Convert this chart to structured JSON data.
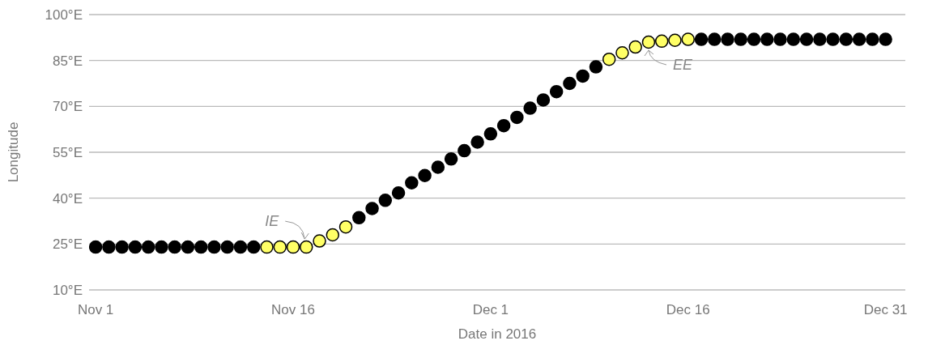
{
  "chart_data": {
    "type": "scatter",
    "xlabel": "Date in 2016",
    "ylabel": "Longitude",
    "xlim": [
      "2016-10-31T12:00",
      "2017-01-01T12:00"
    ],
    "xticks": [
      {
        "value": "2016-11-01",
        "label": "Nov 1"
      },
      {
        "value": "2016-11-16",
        "label": "Nov 16"
      },
      {
        "value": "2016-12-01",
        "label": "Dec 1"
      },
      {
        "value": "2016-12-16",
        "label": "Dec 16"
      },
      {
        "value": "2016-12-31",
        "label": "Dec 31"
      }
    ],
    "ylim": [
      10,
      100
    ],
    "yticks": [
      {
        "value": 10,
        "label": "10°E"
      },
      {
        "value": 25,
        "label": "25°E"
      },
      {
        "value": 40,
        "label": "40°E"
      },
      {
        "value": 55,
        "label": "55°E"
      },
      {
        "value": 70,
        "label": "70°E"
      },
      {
        "value": 85,
        "label": "85°E"
      },
      {
        "value": 100,
        "label": "100°E"
      }
    ],
    "grid": "y",
    "legend": false,
    "marker": "circle",
    "series": [
      {
        "color": "#000000",
        "x": [
          "2016-11-01",
          "2016-11-02",
          "2016-11-03",
          "2016-11-04",
          "2016-11-05",
          "2016-11-06",
          "2016-11-07",
          "2016-11-08",
          "2016-11-09",
          "2016-11-10",
          "2016-11-11",
          "2016-11-12",
          "2016-11-13",
          "2016-11-21",
          "2016-11-22",
          "2016-11-23",
          "2016-11-24",
          "2016-11-25",
          "2016-11-26",
          "2016-11-27",
          "2016-11-28",
          "2016-11-29",
          "2016-11-30",
          "2016-12-01",
          "2016-12-02",
          "2016-12-03",
          "2016-12-04",
          "2016-12-05",
          "2016-12-06",
          "2016-12-07",
          "2016-12-08",
          "2016-12-09",
          "2016-12-17",
          "2016-12-18",
          "2016-12-19",
          "2016-12-20",
          "2016-12-21",
          "2016-12-22",
          "2016-12-23",
          "2016-12-24",
          "2016-12-25",
          "2016-12-26",
          "2016-12-27",
          "2016-12-28",
          "2016-12-29",
          "2016-12-30",
          "2016-12-31"
        ],
        "values": [
          24,
          24,
          24,
          24,
          24,
          24,
          24,
          24,
          24,
          24,
          24,
          24,
          24,
          33.6,
          36.6,
          39.3,
          41.7,
          45,
          47.4,
          50.1,
          52.8,
          55.5,
          58.3,
          61,
          63.7,
          66.4,
          69.4,
          72.1,
          74.8,
          77.5,
          79.9,
          82.9,
          91.9,
          91.9,
          91.9,
          91.9,
          91.9,
          91.9,
          91.9,
          91.9,
          91.9,
          91.9,
          91.9,
          91.9,
          91.9,
          91.9,
          91.9
        ]
      },
      {
        "color": "#ffff66",
        "x": [
          "2016-11-14",
          "2016-11-15",
          "2016-11-16",
          "2016-11-17",
          "2016-11-18",
          "2016-11-19",
          "2016-11-20",
          "2016-12-10",
          "2016-12-11",
          "2016-12-12",
          "2016-12-13",
          "2016-12-14",
          "2016-12-15",
          "2016-12-16"
        ],
        "values": [
          24,
          24,
          24,
          24,
          26,
          28,
          30.6,
          85.4,
          87.5,
          89.4,
          91,
          91.3,
          91.6,
          91.9
        ]
      }
    ],
    "annotations": [
      {
        "text": "IE",
        "x": "2016-11-17",
        "y": 24
      },
      {
        "text": "EE",
        "x": "2016-12-13",
        "y": 91
      }
    ]
  }
}
